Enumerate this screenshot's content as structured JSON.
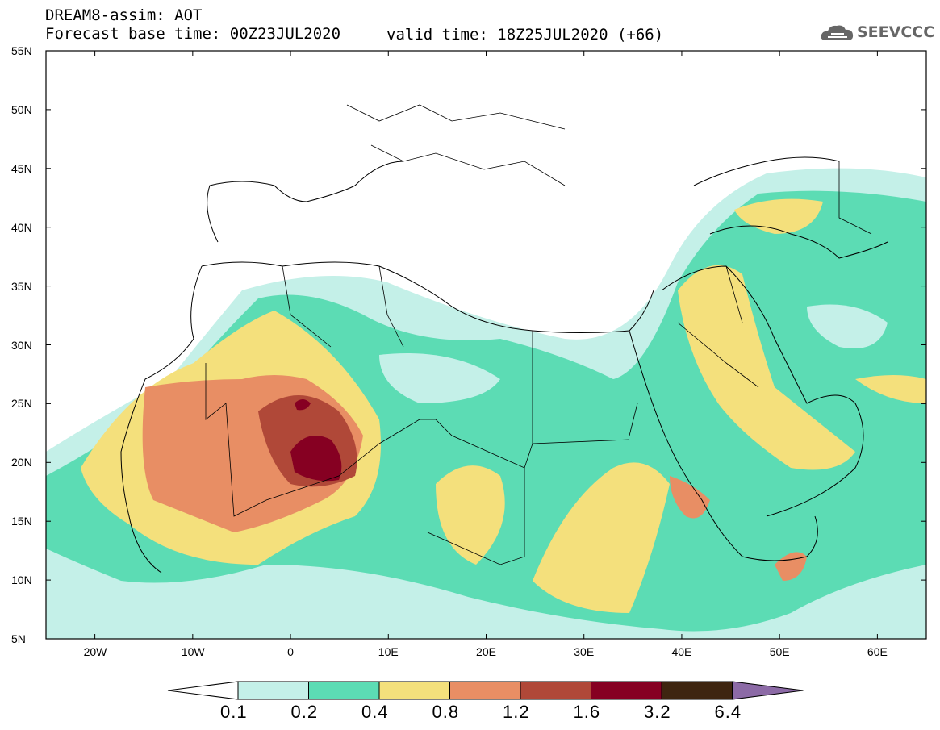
{
  "header": {
    "title_line1": "DREAM8-assim: AOT",
    "title_line2": "Forecast base time: 00Z23JUL2020",
    "valid_time": "valid time: 18Z25JUL2020 (+66)"
  },
  "logo": {
    "text": "SEEVCCC",
    "icon": "cloud-icon"
  },
  "map": {
    "lon_range": [
      -25,
      65
    ],
    "lat_range": [
      5,
      55
    ],
    "lat_ticks": [
      {
        "value": 55,
        "label": "55N"
      },
      {
        "value": 50,
        "label": "50N"
      },
      {
        "value": 45,
        "label": "45N"
      },
      {
        "value": 40,
        "label": "40N"
      },
      {
        "value": 35,
        "label": "35N"
      },
      {
        "value": 30,
        "label": "30N"
      },
      {
        "value": 25,
        "label": "25N"
      },
      {
        "value": 20,
        "label": "20N"
      },
      {
        "value": 15,
        "label": "15N"
      },
      {
        "value": 10,
        "label": "10N"
      },
      {
        "value": 5,
        "label": "5N"
      }
    ],
    "lon_ticks": [
      {
        "value": -20,
        "label": "20W"
      },
      {
        "value": -10,
        "label": "10W"
      },
      {
        "value": 0,
        "label": "0"
      },
      {
        "value": 10,
        "label": "10E"
      },
      {
        "value": 20,
        "label": "20E"
      },
      {
        "value": 30,
        "label": "30E"
      },
      {
        "value": 40,
        "label": "40E"
      },
      {
        "value": 50,
        "label": "50E"
      },
      {
        "value": 60,
        "label": "60E"
      }
    ],
    "field": "AOT"
  },
  "colorbar": {
    "levels": [
      "0.1",
      "0.2",
      "0.4",
      "0.8",
      "1.2",
      "1.6",
      "3.2",
      "6.4"
    ],
    "colors": [
      "#c4f0e8",
      "#5cdcb4",
      "#f4e07c",
      "#e88e64",
      "#b04838",
      "#860022",
      "#3e2510",
      "#8c6aa6"
    ]
  }
}
